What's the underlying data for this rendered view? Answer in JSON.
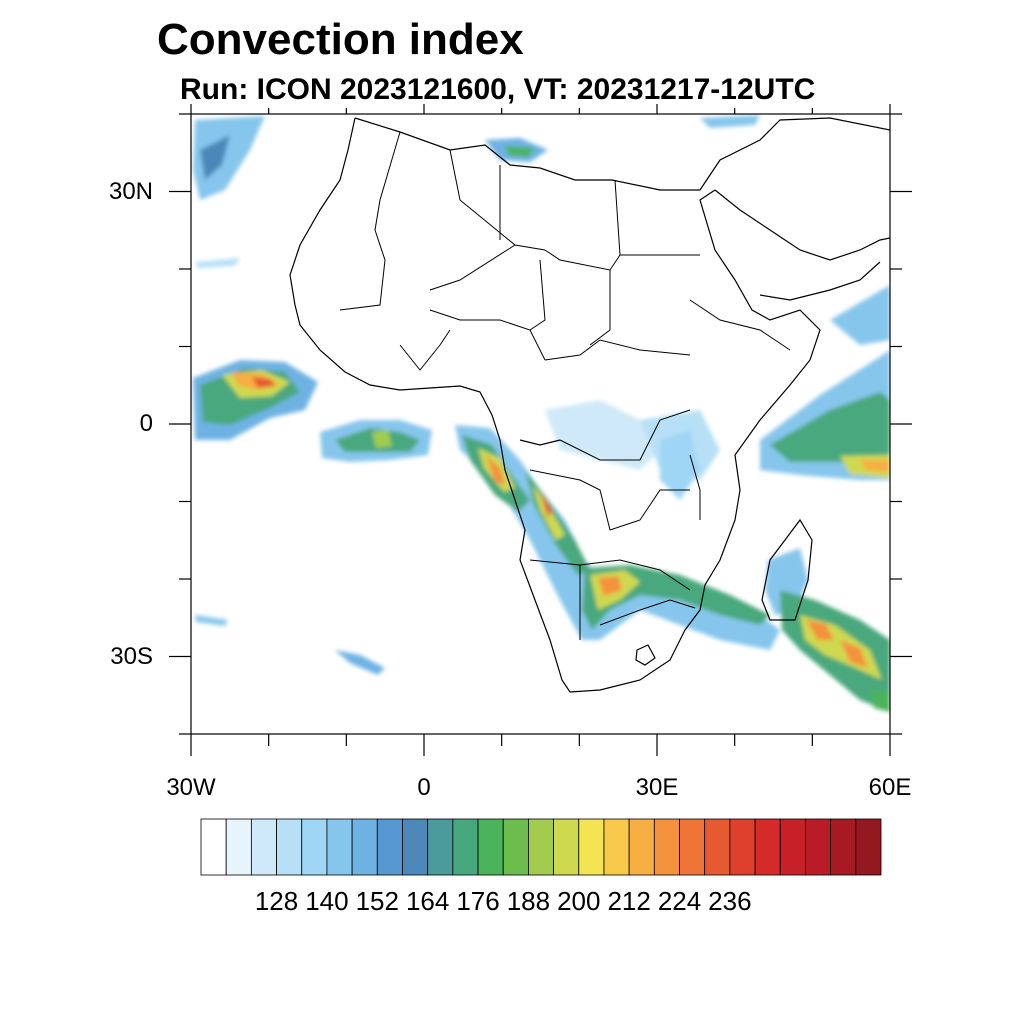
{
  "title": "Convection index",
  "subtitle": "Run: ICON 2023121600,  VT: 20231217-12UTC",
  "map": {
    "lon_range": [
      -30,
      60
    ],
    "lat_range": [
      -40,
      40
    ],
    "lat_labels": [
      {
        "value": 30,
        "text": "30N"
      },
      {
        "value": 0,
        "text": "0"
      },
      {
        "value": -30,
        "text": "30S"
      }
    ],
    "lon_labels": [
      {
        "value": -30,
        "text": "30W"
      },
      {
        "value": 0,
        "text": "0"
      },
      {
        "value": 30,
        "text": "30E"
      },
      {
        "value": 60,
        "text": "60E"
      }
    ]
  },
  "colorbar": {
    "colors": [
      "#ffffff",
      "#e6f4fb",
      "#cfe9f8",
      "#b7e0f7",
      "#9fd6f5",
      "#86c6ec",
      "#6eb2e3",
      "#5798d2",
      "#4c88b9",
      "#4a9b9a",
      "#48a87d",
      "#4bb35c",
      "#6cbd4e",
      "#a3cc4f",
      "#cfd94f",
      "#f2e452",
      "#f8c84a",
      "#f7ae43",
      "#f4913c",
      "#ee7336",
      "#e65a31",
      "#df402d",
      "#d42b2a",
      "#c72028",
      "#b91c26",
      "#a81a23",
      "#941820"
    ],
    "labels": [
      "128",
      "140",
      "152",
      "164",
      "176",
      "188",
      "200",
      "212",
      "224",
      "236"
    ]
  }
}
